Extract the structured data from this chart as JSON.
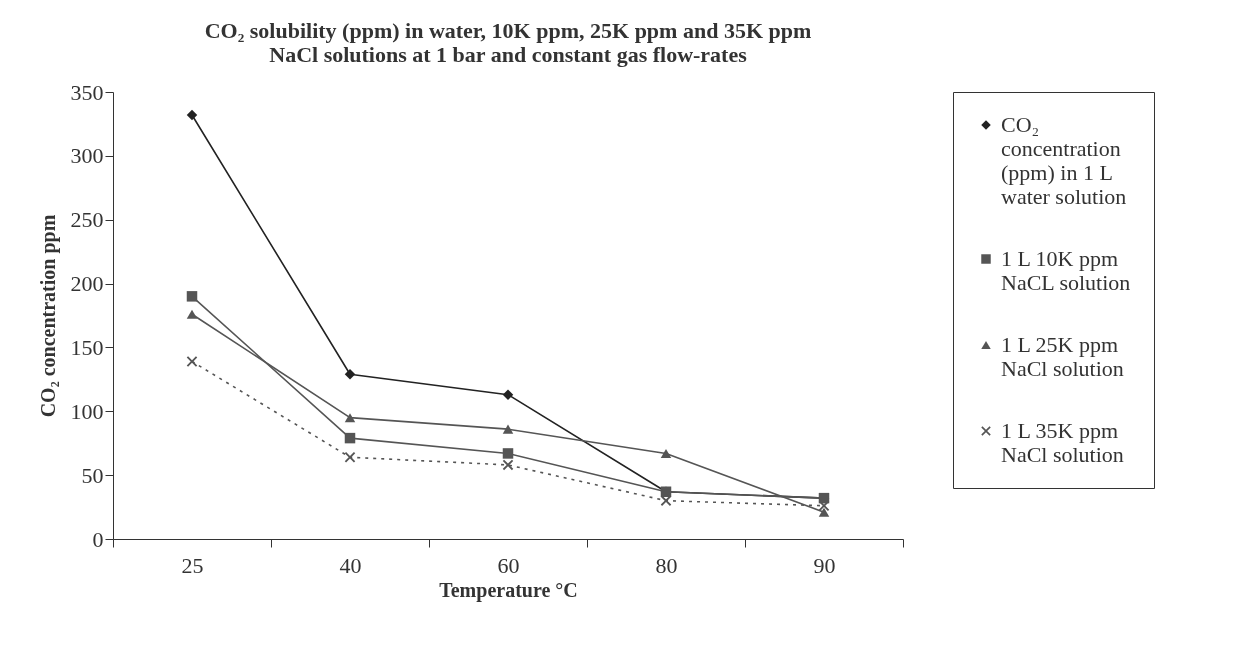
{
  "chart_data": {
    "type": "line",
    "title": "CO₂ solubility (ppm) in water, 10K ppm, 25K ppm and 35K ppm NaCl solutions at 1 bar and constant gas flow-rates",
    "xlabel": "Temperature °C",
    "ylabel": "CO₂ concentration ppm",
    "categories": [
      "25",
      "40",
      "60",
      "80",
      "90"
    ],
    "series": [
      {
        "name": "CO₂ concentration (ppm) in 1 L water solution",
        "color": "#222222",
        "marker": "diamond",
        "line_style": "solid",
        "values": [
          332,
          129,
          113,
          37,
          32
        ]
      },
      {
        "name": "1 L 10K ppm NaCL solution",
        "color": "#555555",
        "marker": "square",
        "line_style": "solid",
        "values": [
          190,
          79,
          67,
          37,
          32
        ]
      },
      {
        "name": "1 L 25K ppm NaCl solution",
        "color": "#555555",
        "marker": "triangle",
        "line_style": "solid",
        "values": [
          176,
          95,
          86,
          67,
          21
        ]
      },
      {
        "name": "1 L 35K ppm NaCl solution",
        "color": "#555555",
        "marker": "cross",
        "line_style": "dotted",
        "values": [
          139,
          64,
          58,
          30,
          26
        ]
      }
    ],
    "ylim": [
      0,
      350
    ],
    "yticks": [
      0,
      50,
      100,
      150,
      200,
      250,
      300,
      350
    ],
    "grid": false,
    "legend": "right"
  }
}
